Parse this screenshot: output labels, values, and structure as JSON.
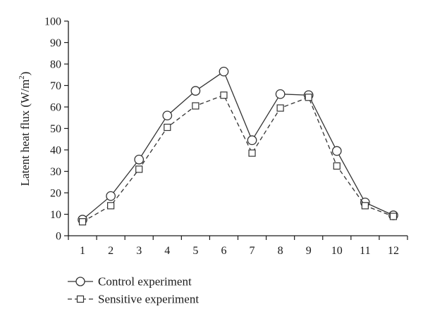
{
  "chart_data": {
    "type": "line",
    "ylabel": "Latent heat flux (W/m",
    "ylabel_superscript": "2",
    "ylabel_close": ")",
    "xlabel": "",
    "categories": [
      "1",
      "2",
      "3",
      "4",
      "5",
      "6",
      "7",
      "8",
      "9",
      "10",
      "11",
      "12"
    ],
    "ylim": [
      0,
      100
    ],
    "y_ticks": [
      "0",
      "10",
      "20",
      "30",
      "40",
      "50",
      "60",
      "70",
      "80",
      "90",
      "100"
    ],
    "grid": false,
    "legend_placement": "bottom-left",
    "series": [
      {
        "name": "Control experiment",
        "line_style": "solid",
        "marker": "circle",
        "color": "#333333",
        "values": [
          7.5,
          18.5,
          35.5,
          56,
          67.5,
          76.5,
          44.5,
          66,
          65.5,
          39.5,
          15.5,
          9.5
        ]
      },
      {
        "name": "Sensitive experiment",
        "line_style": "dashed",
        "marker": "square",
        "color": "#333333",
        "values": [
          6.5,
          14,
          31,
          50.5,
          60.5,
          65.5,
          38.5,
          59.5,
          64.5,
          32.5,
          14,
          9
        ]
      }
    ]
  }
}
